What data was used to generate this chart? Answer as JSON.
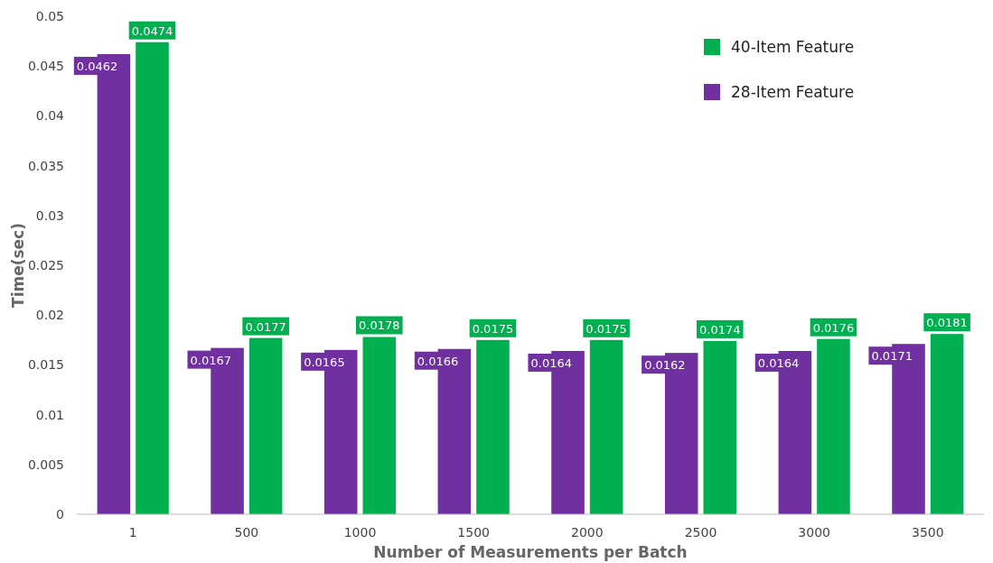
{
  "chart_data": {
    "type": "bar",
    "xlabel": "Number of Measurements per Batch",
    "ylabel": "Time(sec)",
    "categories": [
      "1",
      "500",
      "1000",
      "1500",
      "2000",
      "2500",
      "3000",
      "3500"
    ],
    "series": [
      {
        "name": "28-Item Feature",
        "color": "#7030a0",
        "values": [
          0.0462,
          0.0167,
          0.0165,
          0.0166,
          0.0164,
          0.0162,
          0.0164,
          0.0171
        ]
      },
      {
        "name": "40-Item Feature",
        "color": "#00b050",
        "values": [
          0.0474,
          0.0177,
          0.0178,
          0.0175,
          0.0175,
          0.0174,
          0.0176,
          0.0181
        ]
      }
    ],
    "ylim": [
      0,
      0.05
    ],
    "yticks": [
      0,
      0.005,
      0.01,
      0.015,
      0.02,
      0.025,
      0.03,
      0.035,
      0.04,
      0.045,
      0.05
    ],
    "data_labels": true,
    "legend": "top right",
    "grid": false
  }
}
